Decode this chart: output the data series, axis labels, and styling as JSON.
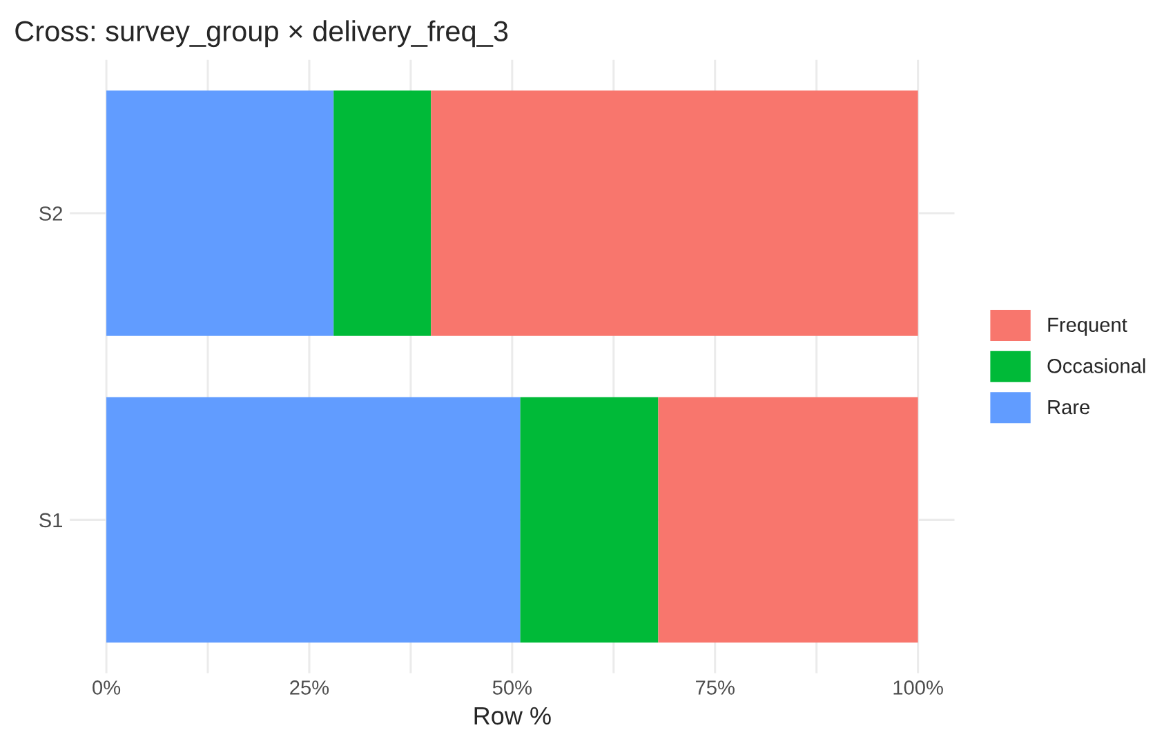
{
  "chart_data": {
    "type": "bar",
    "orientation": "horizontal",
    "stacked": true,
    "title": "Cross: survey_group × delivery_freq_3",
    "xlabel": "Row %",
    "categories": [
      "S2",
      "S1"
    ],
    "series": [
      {
        "name": "Rare",
        "color": "#619cff",
        "values": [
          28,
          51
        ]
      },
      {
        "name": "Occasional",
        "color": "#00ba38",
        "values": [
          12,
          17
        ]
      },
      {
        "name": "Frequent",
        "color": "#f8766d",
        "values": [
          60,
          32
        ]
      }
    ],
    "xlim": [
      -4.5,
      104.5
    ],
    "xticks": [
      {
        "value": 0,
        "label": "0%"
      },
      {
        "value": 12.5,
        "label": null
      },
      {
        "value": 25,
        "label": "25%"
      },
      {
        "value": 37.5,
        "label": null
      },
      {
        "value": 50,
        "label": "50%"
      },
      {
        "value": 62.5,
        "label": null
      },
      {
        "value": 75,
        "label": "75%"
      },
      {
        "value": 87.5,
        "label": null
      },
      {
        "value": 100,
        "label": "100%"
      }
    ],
    "grid": true,
    "legend": "right"
  }
}
